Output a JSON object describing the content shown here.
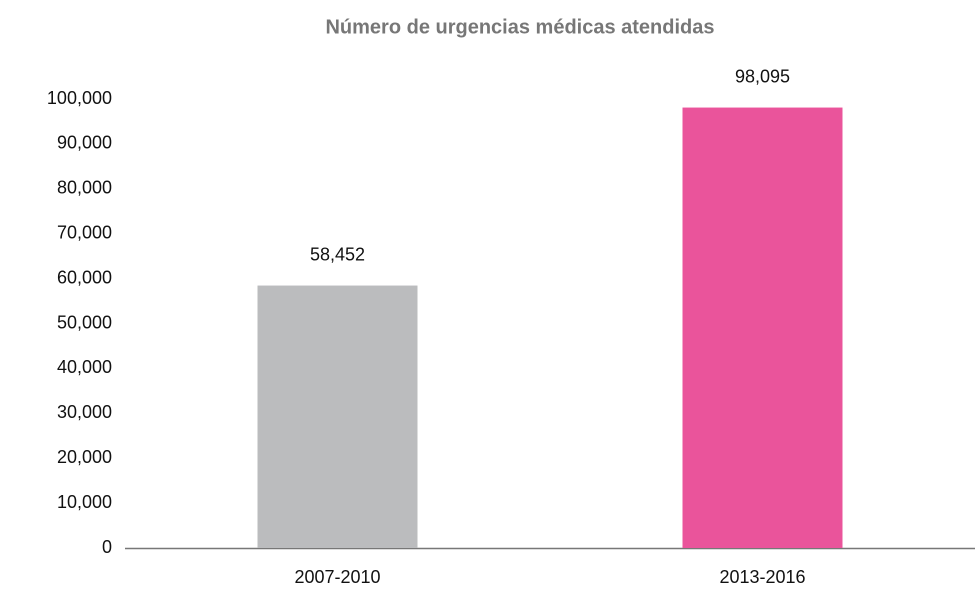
{
  "chart_data": {
    "type": "bar",
    "title": "Número de urgencias médicas atendidas",
    "categories": [
      "2007-2010",
      "2013-2016"
    ],
    "values": [
      58452,
      98095
    ],
    "value_labels": [
      "58,452",
      "98,095"
    ],
    "colors": [
      "#bbbcbe",
      "#ea549b"
    ],
    "ylim": [
      0,
      100000
    ],
    "yticks": [
      0,
      {
        "value": 10000,
        "label": "10,000"
      },
      {
        "value": 20000,
        "label": "20,000"
      },
      {
        "value": 30000,
        "label": "30,000"
      },
      {
        "value": 40000,
        "label": "40,000"
      },
      {
        "value": 50000,
        "label": "50,000"
      },
      {
        "value": 60000,
        "label": "60,000"
      },
      {
        "value": 70000,
        "label": "70,000"
      },
      {
        "value": 80000,
        "label": "80,000"
      },
      {
        "value": 90000,
        "label": "90,000"
      },
      {
        "value": 100000,
        "label": "100,000"
      }
    ],
    "grid": false
  }
}
